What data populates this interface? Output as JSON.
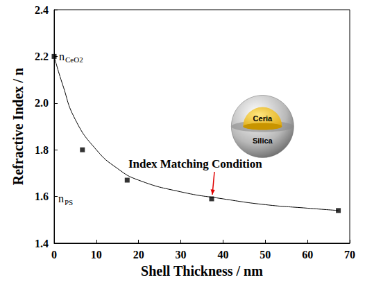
{
  "chart_data": {
    "type": "scatter",
    "x_label": "Shell Thickness / nm",
    "y_label": "Refractive Index / n",
    "series": [
      {
        "type": "scatter",
        "marker": "square",
        "color": "#000000",
        "x": [
          0,
          6.7,
          17.3,
          37.3,
          67.3
        ],
        "values": [
          2.2,
          1.8,
          1.67,
          1.59,
          1.54
        ]
      },
      {
        "type": "line",
        "line_style": "solid",
        "color": "#000000",
        "x": [
          0,
          2,
          5,
          10,
          15,
          20,
          30,
          40,
          50,
          60,
          67.3
        ],
        "values": [
          2.2,
          2.08,
          1.93,
          1.8,
          1.72,
          1.67,
          1.62,
          1.59,
          1.565,
          1.55,
          1.54
        ]
      }
    ],
    "xlim": [
      0,
      70
    ],
    "xticks": [
      0,
      10,
      20,
      30,
      40,
      50,
      60,
      70
    ],
    "ylim": [
      1.4,
      2.4
    ],
    "yticks": [
      1.4,
      1.6,
      1.8,
      {
        "value": 2,
        "label": "2.0"
      },
      2.2,
      2.4
    ],
    "grid": false,
    "annotations": [
      {
        "text": "n",
        "subscript": "CeO2"
      },
      {
        "text": "n",
        "subscript": "PS"
      },
      {
        "text": "Index Matching Condition"
      }
    ],
    "inset": {
      "core_label": "Ceria",
      "shell_label": "Silica"
    }
  }
}
